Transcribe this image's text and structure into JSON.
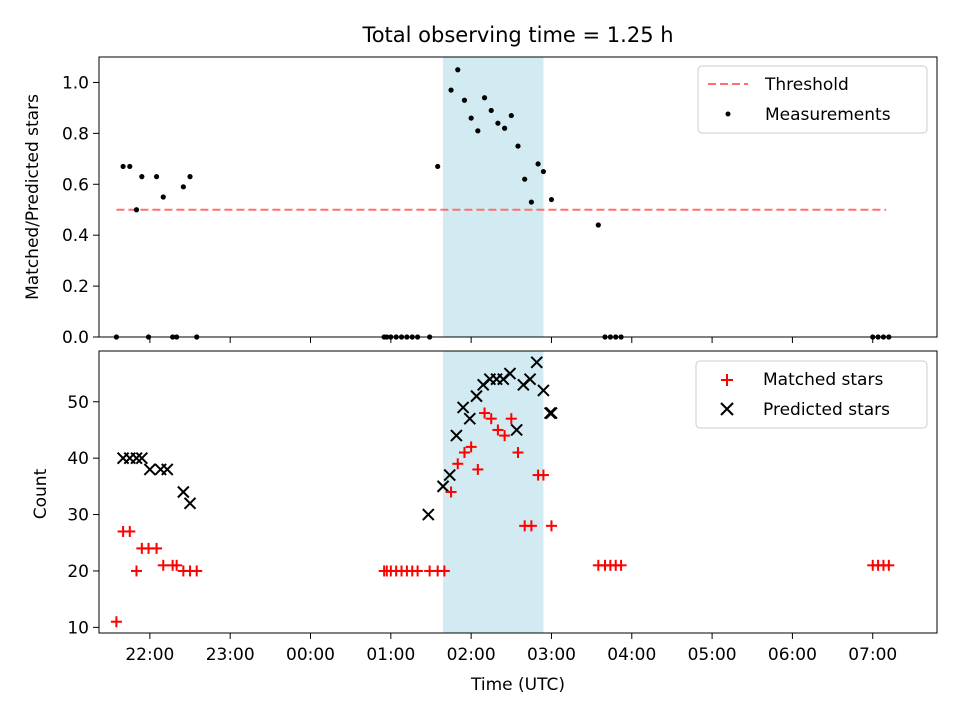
{
  "chart_data": [
    {
      "type": "scatter",
      "title": "Total observing time = 1.25 h",
      "xlabel": "",
      "ylabel": "Matched/Predicted stars",
      "xlim": [
        "21:22",
        "07:48"
      ],
      "ylim": [
        0,
        1.1
      ],
      "yticks": [
        0.0,
        0.2,
        0.4,
        0.6,
        0.8,
        1.0
      ],
      "ytick_labels": [
        "0.0",
        "0.2",
        "0.4",
        "0.6",
        "0.8",
        "1.0"
      ],
      "legend_position": "top-right",
      "shaded_interval": [
        "01:39",
        "02:54"
      ],
      "colors": {
        "threshold": "#ff6f6f",
        "measurements": "#000000",
        "shade": "#add8e6"
      },
      "series": [
        {
          "name": "Threshold",
          "kind": "dashed-line",
          "x": [
            "21:35",
            "07:10"
          ],
          "y": [
            0.5,
            0.5
          ]
        },
        {
          "name": "Measurements",
          "kind": "points",
          "x": [
            "21:35",
            "21:40",
            "21:45",
            "21:50",
            "21:54",
            "21:59",
            "22:05",
            "22:10",
            "22:17",
            "22:20",
            "22:25",
            "22:30",
            "22:35",
            "00:55",
            "00:57",
            "01:00",
            "01:04",
            "01:08",
            "01:12",
            "01:16",
            "01:20",
            "01:29",
            "01:35",
            "01:45",
            "01:50",
            "01:55",
            "02:00",
            "02:05",
            "02:10",
            "02:15",
            "02:20",
            "02:25",
            "02:30",
            "02:35",
            "02:40",
            "02:45",
            "02:50",
            "02:54",
            "03:00",
            "03:35",
            "03:40",
            "03:44",
            "03:48",
            "03:52",
            "07:00",
            "07:04",
            "07:08",
            "07:12"
          ],
          "y": [
            0.0,
            0.67,
            0.67,
            0.5,
            0.63,
            0.0,
            0.63,
            0.55,
            0.0,
            0.0,
            0.59,
            0.63,
            0.0,
            0.0,
            0.0,
            0.0,
            0.0,
            0.0,
            0.0,
            0.0,
            0.0,
            0.0,
            0.67,
            0.97,
            1.05,
            0.93,
            0.86,
            0.81,
            0.94,
            0.89,
            0.84,
            0.82,
            0.87,
            0.75,
            0.62,
            0.53,
            0.68,
            0.65,
            0.54,
            0.44,
            0.0,
            0.0,
            0.0,
            0.0,
            0.0,
            0.0,
            0.0,
            0.0
          ]
        }
      ]
    },
    {
      "type": "scatter",
      "title": "",
      "xlabel": "Time (UTC)",
      "ylabel": "Count",
      "xlim": [
        "21:22",
        "07:48"
      ],
      "ylim": [
        9,
        59
      ],
      "yticks": [
        10,
        20,
        30,
        40,
        50
      ],
      "ytick_labels": [
        "10",
        "20",
        "30",
        "40",
        "50"
      ],
      "xticks": [
        "22:00",
        "23:00",
        "00:00",
        "01:00",
        "02:00",
        "03:00",
        "04:00",
        "05:00",
        "06:00",
        "07:00"
      ],
      "legend_position": "top-right",
      "shaded_interval": [
        "01:39",
        "02:54"
      ],
      "colors": {
        "matched": "#ff0000",
        "predicted": "#000000",
        "shade": "#add8e6"
      },
      "series": [
        {
          "name": "Matched stars",
          "marker": "plus",
          "x": [
            "21:35",
            "21:40",
            "21:45",
            "21:50",
            "21:54",
            "21:59",
            "22:05",
            "22:10",
            "22:17",
            "22:20",
            "22:25",
            "22:30",
            "22:35",
            "00:55",
            "00:57",
            "01:00",
            "01:04",
            "01:08",
            "01:12",
            "01:16",
            "01:20",
            "01:29",
            "01:35",
            "01:40",
            "01:45",
            "01:50",
            "01:55",
            "02:00",
            "02:05",
            "02:10",
            "02:15",
            "02:20",
            "02:25",
            "02:30",
            "02:35",
            "02:40",
            "02:45",
            "02:50",
            "02:54",
            "03:00",
            "03:35",
            "03:40",
            "03:44",
            "03:48",
            "03:52",
            "07:00",
            "07:04",
            "07:08",
            "07:12"
          ],
          "y": [
            11,
            27,
            27,
            20,
            24,
            24,
            24,
            21,
            21,
            21,
            20,
            20,
            20,
            20,
            20,
            20,
            20,
            20,
            20,
            20,
            20,
            20,
            20,
            20,
            34,
            39,
            41,
            42,
            38,
            48,
            47,
            45,
            44,
            47,
            41,
            28,
            28,
            37,
            37,
            28,
            21,
            21,
            21,
            21,
            21,
            21,
            21,
            21,
            21
          ]
        },
        {
          "name": "Predicted stars",
          "marker": "x",
          "x": [
            "21:40",
            "21:45",
            "21:50",
            "21:54",
            "22:00",
            "22:08",
            "22:13",
            "22:25",
            "22:30",
            "01:28",
            "01:39",
            "01:44",
            "01:49",
            "01:54",
            "01:59",
            "02:04",
            "02:09",
            "02:14",
            "02:19",
            "02:24",
            "02:29",
            "02:34",
            "02:39",
            "02:44",
            "02:49",
            "02:54",
            "02:59",
            "03:00"
          ],
          "y": [
            40,
            40,
            40,
            40,
            38,
            38,
            38,
            34,
            32,
            30,
            35,
            37,
            44,
            49,
            47,
            51,
            53,
            54,
            54,
            54,
            55,
            45,
            53,
            54,
            57,
            52,
            48,
            48
          ]
        }
      ]
    }
  ]
}
